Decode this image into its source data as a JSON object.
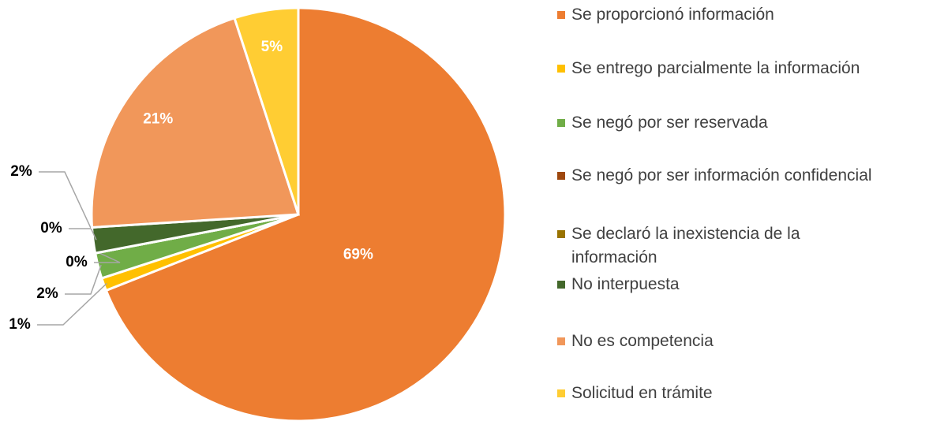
{
  "chart_data": {
    "type": "pie",
    "categories": [
      "Se proporcionó información",
      "Se entrego parcialmente la información",
      "Se negó por ser reservada",
      "Se negó por ser información confidencial",
      "Se declaró la inexistencia de la información",
      "No interpuesta",
      "No es competencia",
      "Solicitud en trámite"
    ],
    "values": [
      69,
      1,
      2,
      0,
      0,
      2,
      21,
      5
    ],
    "value_labels": [
      "69%",
      "1%",
      "2%",
      "0%",
      "0%",
      "2%",
      "21%",
      "5%"
    ],
    "colors": [
      "#ED7D31",
      "#FFC000",
      "#70AD47",
      "#9E480E",
      "#997300",
      "#43682B",
      "#F1975A",
      "#FFCD33"
    ],
    "legend": "right"
  }
}
